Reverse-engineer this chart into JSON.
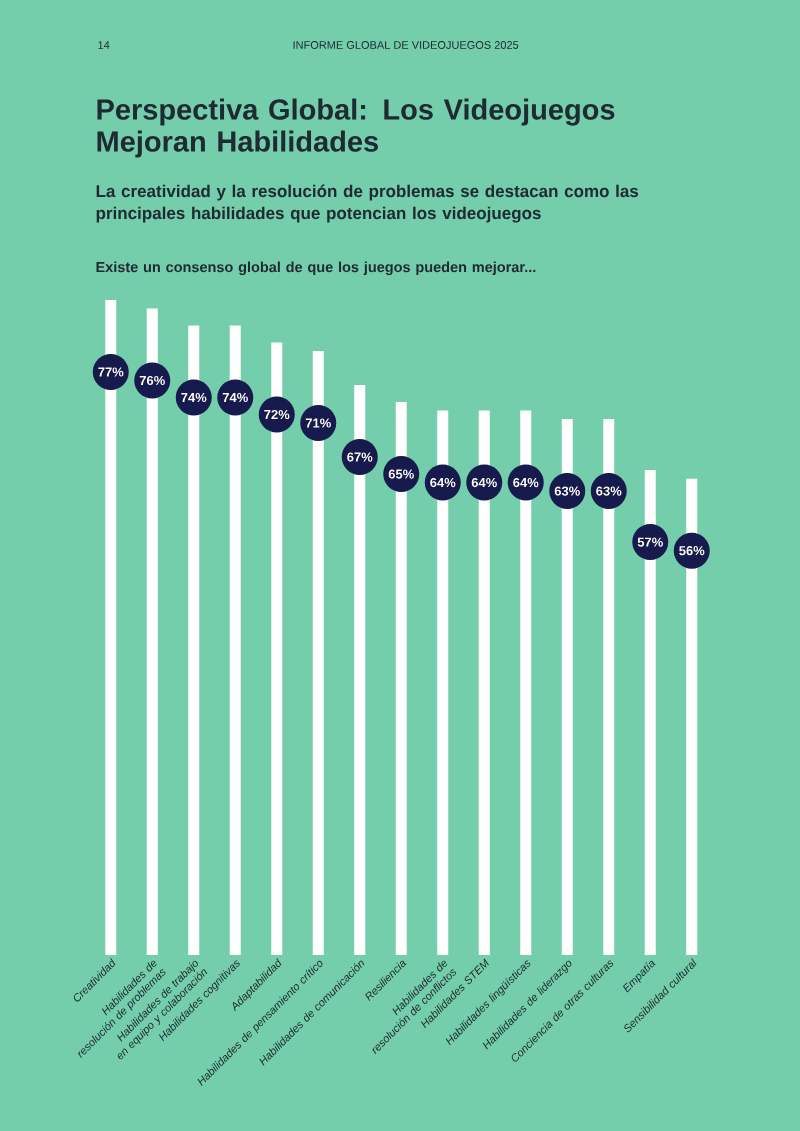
{
  "chart_data": {
    "type": "bar",
    "title": "Perspectiva Global: Los Videojuegos Mejoran Habilidades",
    "subtitle": "La creatividad y la resolución de problemas se destacan como las principales habilidades que potencian los videojuegos",
    "annotations": [
      "14",
      "INFORME GLOBAL DE VIDEOJUEGOS 2025",
      "Existe un consenso global de que los juegos pueden mejorar..."
    ],
    "categories": [
      "Creatividad",
      "Habilidades de resolución de problemas",
      "Habilidades de trabajo en equipo y colaboración",
      "Habilidades cognitivas",
      "Adaptabilidad",
      "Habilidades de pensamiento crítico",
      "Habilidades de comunicación",
      "Resiliencia",
      "Habilidades de resolución de conflictos",
      "Habilidades STEM",
      "Habilidades lingüísticas",
      "Habilidades de liderazgo",
      "Conciencia de otras culturas",
      "Empatía",
      "Sensibilidad cultural"
    ],
    "values": [
      77,
      76,
      74,
      74,
      72,
      71,
      67,
      65,
      64,
      64,
      64,
      63,
      63,
      57,
      56
    ],
    "value_labels": [
      "77%",
      "76%",
      "74%",
      "74%",
      "72%",
      "71%",
      "67%",
      "65%",
      "64%",
      "64%",
      "64%",
      "63%",
      "63%",
      "57%",
      "56%"
    ],
    "color": "#ffffff",
    "tick_labels": "x"
  }
}
